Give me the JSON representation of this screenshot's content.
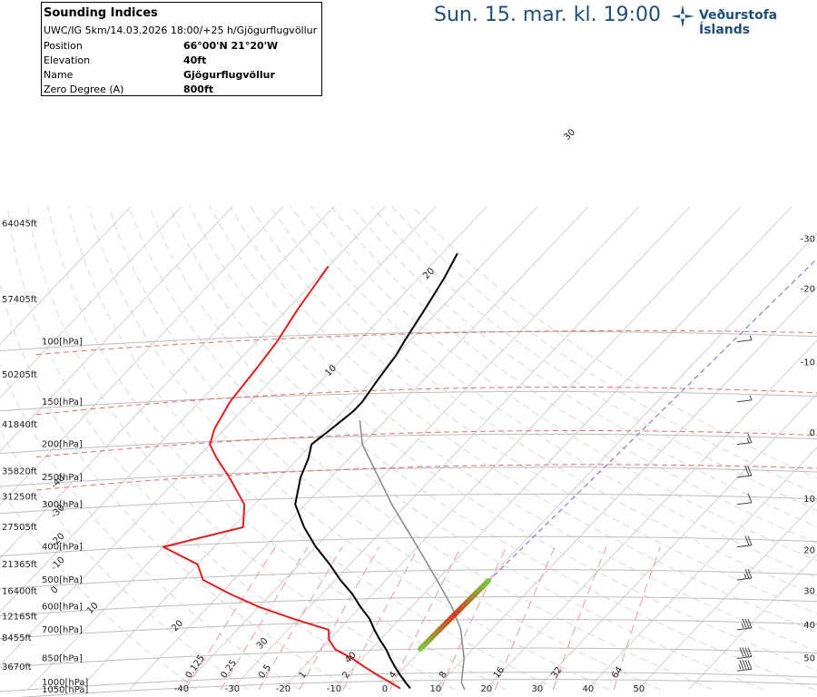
{
  "header": {
    "title": "Sun. 15. mar. kl. 19:00",
    "brand": "Veðurstofa Íslands"
  },
  "info": {
    "title": "Sounding Indices",
    "subtitle": "UWC/IG 5km/14.03.2026 18:00/+25 h/Gjögurflugvöllur",
    "rows": [
      {
        "label": "Position",
        "value": "66°00'N 21°20'W"
      },
      {
        "label": "Elevation",
        "value": "40ft"
      },
      {
        "label": "Name",
        "value": "Gjögurflugvöllur"
      },
      {
        "label": "Zero Degree (A)",
        "value": "800ft"
      }
    ]
  },
  "colors": {
    "temperature": "#000000",
    "dewpoint": "#dd1f1f",
    "parcel": "#888888",
    "isotherm": "#ec9b9b",
    "title": "#1f4e7a"
  },
  "chart_data": {
    "type": "line",
    "chart_kind": "skew-T log-p sounding diagram",
    "y_scale": "log pressure",
    "pressure_levels": [
      {
        "p": 1050,
        "label": "1050[hPa]"
      },
      {
        "p": 1000,
        "label": "1000[hPa]"
      },
      {
        "p": 850,
        "label": "850[hPa]"
      },
      {
        "p": 700,
        "label": "700[hPa]"
      },
      {
        "p": 600,
        "label": "600[hPa]"
      },
      {
        "p": 500,
        "label": "500[hPa]"
      },
      {
        "p": 400,
        "label": "400[hPa]"
      },
      {
        "p": 300,
        "label": "300[hPa]"
      },
      {
        "p": 250,
        "label": "250[hPa]"
      },
      {
        "p": 200,
        "label": "200[hPa]"
      },
      {
        "p": 150,
        "label": "150[hPa]"
      },
      {
        "p": 100,
        "label": "100[hPa]"
      }
    ],
    "altitude_labels": [
      {
        "p": 900,
        "label": "3670ft"
      },
      {
        "p": 740,
        "label": "8455ft"
      },
      {
        "p": 640,
        "label": "12165ft"
      },
      {
        "p": 540,
        "label": "16400ft"
      },
      {
        "p": 450,
        "label": "21365ft"
      },
      {
        "p": 350,
        "label": "27505ft"
      },
      {
        "p": 285,
        "label": "31250ft"
      },
      {
        "p": 240,
        "label": "35820ft"
      },
      {
        "p": 175,
        "label": "41840ft"
      },
      {
        "p": 125,
        "label": "50205ft"
      },
      {
        "p": 75,
        "label": "57405ft"
      },
      {
        "p": 45,
        "label": "64045ft"
      }
    ],
    "right_scale": [
      {
        "label": "-30",
        "p": 50
      },
      {
        "label": "-20",
        "p": 70
      },
      {
        "label": "-10",
        "p": 115
      },
      {
        "label": "0",
        "p": 185
      },
      {
        "label": "10",
        "p": 290
      },
      {
        "label": "20",
        "p": 410
      },
      {
        "label": "30",
        "p": 540
      },
      {
        "label": "40",
        "p": 680
      },
      {
        "label": "50",
        "p": 850
      }
    ],
    "bottom_temp_labels": [
      "-40",
      "-30",
      "-20",
      "-10",
      "0",
      "10",
      "20",
      "30",
      "40",
      "50"
    ],
    "mixing_ratio_labels": [
      "0.125",
      "0.25",
      "0.5",
      "1",
      "2",
      "4",
      "8",
      "16",
      "32",
      "64"
    ],
    "isotherm_labels": [
      "40",
      "30",
      "20",
      "10",
      "0",
      "-10",
      "-20",
      "-30",
      "-40"
    ],
    "adiabat_labels": [
      "30",
      "20",
      "10"
    ],
    "temperature": [
      {
        "p": 1040,
        "t": 5
      },
      {
        "p": 1000,
        "t": 3
      },
      {
        "p": 950,
        "t": 0.5
      },
      {
        "p": 900,
        "t": -2
      },
      {
        "p": 850,
        "t": -4.5
      },
      {
        "p": 800,
        "t": -7
      },
      {
        "p": 750,
        "t": -10
      },
      {
        "p": 700,
        "t": -13
      },
      {
        "p": 650,
        "t": -16
      },
      {
        "p": 600,
        "t": -20
      },
      {
        "p": 550,
        "t": -24
      },
      {
        "p": 500,
        "t": -29
      },
      {
        "p": 450,
        "t": -34
      },
      {
        "p": 400,
        "t": -40
      },
      {
        "p": 350,
        "t": -46
      },
      {
        "p": 300,
        "t": -52
      },
      {
        "p": 250,
        "t": -56
      },
      {
        "p": 220,
        "t": -58
      },
      {
        "p": 200,
        "t": -60
      },
      {
        "p": 180,
        "t": -59
      },
      {
        "p": 160,
        "t": -58
      },
      {
        "p": 150,
        "t": -58
      },
      {
        "p": 130,
        "t": -59
      },
      {
        "p": 110,
        "t": -60
      },
      {
        "p": 100,
        "t": -61
      },
      {
        "p": 80,
        "t": -63
      },
      {
        "p": 65,
        "t": -65
      },
      {
        "p": 55,
        "t": -67
      }
    ],
    "dewpoint": [
      {
        "p": 1040,
        "t": 3
      },
      {
        "p": 1000,
        "t": 0
      },
      {
        "p": 950,
        "t": -4
      },
      {
        "p": 900,
        "t": -8
      },
      {
        "p": 850,
        "t": -12
      },
      {
        "p": 800,
        "t": -17
      },
      {
        "p": 750,
        "t": -20
      },
      {
        "p": 700,
        "t": -22
      },
      {
        "p": 650,
        "t": -31
      },
      {
        "p": 600,
        "t": -40
      },
      {
        "p": 550,
        "t": -48
      },
      {
        "p": 500,
        "t": -56
      },
      {
        "p": 450,
        "t": -60
      },
      {
        "p": 400,
        "t": -70
      },
      {
        "p": 350,
        "t": -58
      },
      {
        "p": 300,
        "t": -62
      },
      {
        "p": 250,
        "t": -70
      },
      {
        "p": 220,
        "t": -76
      },
      {
        "p": 200,
        "t": -80
      },
      {
        "p": 180,
        "t": -82
      },
      {
        "p": 150,
        "t": -84
      },
      {
        "p": 120,
        "t": -85
      },
      {
        "p": 100,
        "t": -86
      },
      {
        "p": 80,
        "t": -88
      },
      {
        "p": 60,
        "t": -90
      }
    ],
    "parcel": [
      {
        "p": 170,
        "t": -55
      },
      {
        "p": 200,
        "t": -50
      },
      {
        "p": 300,
        "t": -33
      },
      {
        "p": 400,
        "t": -20
      },
      {
        "p": 500,
        "t": -10
      },
      {
        "p": 600,
        "t": -2
      },
      {
        "p": 700,
        "t": 4
      },
      {
        "p": 850,
        "t": 10
      },
      {
        "p": 1000,
        "t": 14
      },
      {
        "p": 1050,
        "t": 16
      }
    ],
    "winds": [
      {
        "p": 1000,
        "speed_kt": 0,
        "dir": 0
      },
      {
        "p": 925,
        "speed_kt": 45,
        "dir": 290
      },
      {
        "p": 850,
        "speed_kt": 40,
        "dir": 290
      },
      {
        "p": 700,
        "speed_kt": 35,
        "dir": 290
      },
      {
        "p": 500,
        "speed_kt": 25,
        "dir": 290
      },
      {
        "p": 400,
        "speed_kt": 20,
        "dir": 290
      },
      {
        "p": 300,
        "speed_kt": 10,
        "dir": 290
      },
      {
        "p": 250,
        "speed_kt": 20,
        "dir": 290
      },
      {
        "p": 200,
        "speed_kt": 15,
        "dir": 300
      },
      {
        "p": 150,
        "speed_kt": 5,
        "dir": 300
      },
      {
        "p": 100,
        "speed_kt": 5,
        "dir": 300
      }
    ]
  }
}
